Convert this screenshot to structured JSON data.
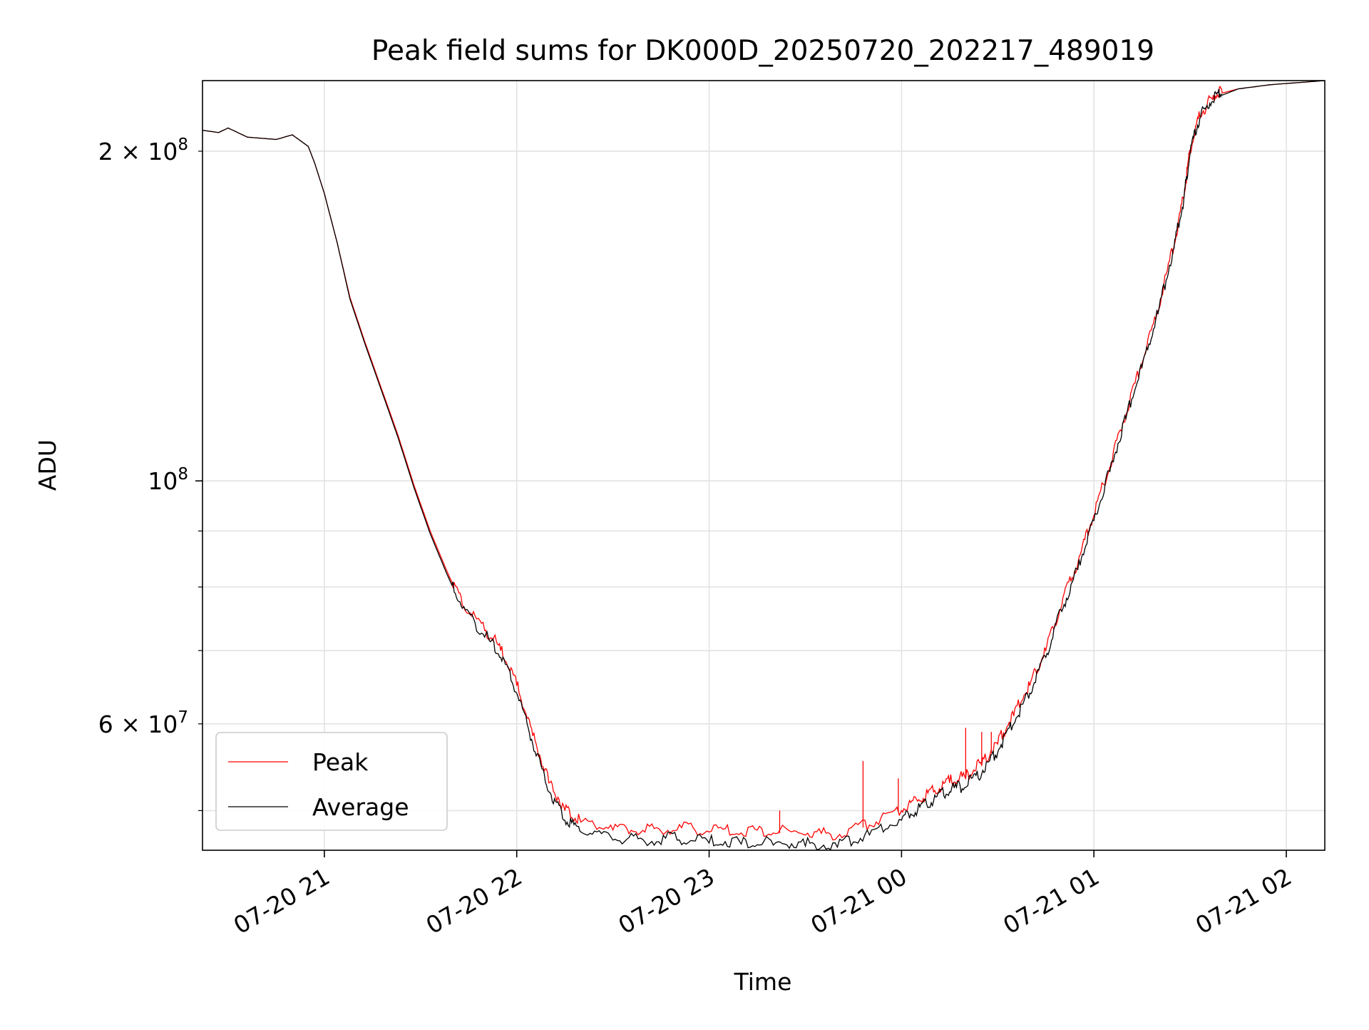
{
  "chart_data": {
    "type": "line",
    "title": "Peak field sums for DK000D_20250720_202217_489019",
    "xlabel": "Time",
    "ylabel": "ADU",
    "xlim": [
      "2025-07-20 20:22",
      "2025-07-21 02:12"
    ],
    "ylim": [
      46000000,
      232000000
    ],
    "yscale": "log",
    "grid": true,
    "legend_position": "lower-left",
    "x_ticks": [
      {
        "value": "2025-07-20 21:00",
        "label": "07-20 21"
      },
      {
        "value": "2025-07-20 22:00",
        "label": "07-20 22"
      },
      {
        "value": "2025-07-20 23:00",
        "label": "07-20 23"
      },
      {
        "value": "2025-07-21 00:00",
        "label": "07-21 00"
      },
      {
        "value": "2025-07-21 01:00",
        "label": "07-21 01"
      },
      {
        "value": "2025-07-21 02:00",
        "label": "07-21 02"
      }
    ],
    "y_major_ticks": [
      {
        "value": 100000000,
        "label": "10",
        "exp": "8"
      }
    ],
    "y_labeled_minor_ticks": [
      {
        "value": 60000000,
        "label": "6 × 10",
        "exp": "7"
      },
      {
        "value": 200000000,
        "label": "2 × 10",
        "exp": "8"
      }
    ],
    "y_minor_ticks": [
      50000000,
      70000000,
      80000000,
      90000000
    ],
    "series": [
      {
        "name": "Peak",
        "color": "#ff0000",
        "x": [
          "2025-07-20 20:22",
          "2025-07-20 20:27",
          "2025-07-20 20:30",
          "2025-07-20 20:36",
          "2025-07-20 20:45",
          "2025-07-20 20:50",
          "2025-07-20 20:55",
          "2025-07-20 20:57",
          "2025-07-20 21:00",
          "2025-07-20 21:04",
          "2025-07-20 21:08",
          "2025-07-20 21:13",
          "2025-07-20 21:18",
          "2025-07-20 21:23",
          "2025-07-20 21:28",
          "2025-07-20 21:33",
          "2025-07-20 21:38",
          "2025-07-20 21:43",
          "2025-07-20 21:50",
          "2025-07-20 21:55",
          "2025-07-20 22:00",
          "2025-07-20 22:05",
          "2025-07-20 22:10",
          "2025-07-20 22:15",
          "2025-07-20 22:20",
          "2025-07-20 22:30",
          "2025-07-20 22:40",
          "2025-07-20 22:50",
          "2025-07-20 23:00",
          "2025-07-20 23:10",
          "2025-07-20 23:20",
          "2025-07-20 23:30",
          "2025-07-20 23:40",
          "2025-07-20 23:50",
          "2025-07-21 00:00",
          "2025-07-21 00:05",
          "2025-07-21 00:10",
          "2025-07-21 00:15",
          "2025-07-21 00:20",
          "2025-07-21 00:25",
          "2025-07-21 00:30",
          "2025-07-21 00:35",
          "2025-07-21 00:40",
          "2025-07-21 00:45",
          "2025-07-21 00:50",
          "2025-07-21 00:55",
          "2025-07-21 01:00",
          "2025-07-21 01:05",
          "2025-07-21 01:10",
          "2025-07-21 01:15",
          "2025-07-21 01:20",
          "2025-07-21 01:25",
          "2025-07-21 01:28",
          "2025-07-21 01:30",
          "2025-07-21 01:33",
          "2025-07-21 01:37",
          "2025-07-21 01:40",
          "2025-07-21 01:45",
          "2025-07-21 01:55",
          "2025-07-21 02:12"
        ],
        "y": [
          209000000,
          208000000,
          210000000,
          206000000,
          205000000,
          207000000,
          202000000,
          195000000,
          183000000,
          165000000,
          147000000,
          133000000,
          121000000,
          110000000,
          99000000,
          90000000,
          83000000,
          77000000,
          73000000,
          70000000,
          65000000,
          58500000,
          53000000,
          50000000,
          48800000,
          48000000,
          47800000,
          48000000,
          47800000,
          47700000,
          47700000,
          47500000,
          47300000,
          48500000,
          50000000,
          51000000,
          52000000,
          53000000,
          53500000,
          55000000,
          57500000,
          61000000,
          65000000,
          70000000,
          77000000,
          84000000,
          93000000,
          103000000,
          115000000,
          128000000,
          143000000,
          164000000,
          181000000,
          200000000,
          215000000,
          223000000,
          226000000,
          228000000,
          230000000,
          232000000
        ]
      },
      {
        "name": "Average",
        "color": "#000000",
        "x": [
          "2025-07-20 20:22",
          "2025-07-20 20:27",
          "2025-07-20 20:30",
          "2025-07-20 20:36",
          "2025-07-20 20:45",
          "2025-07-20 20:50",
          "2025-07-20 20:55",
          "2025-07-20 20:57",
          "2025-07-20 21:00",
          "2025-07-20 21:04",
          "2025-07-20 21:08",
          "2025-07-20 21:13",
          "2025-07-20 21:18",
          "2025-07-20 21:23",
          "2025-07-20 21:28",
          "2025-07-20 21:33",
          "2025-07-20 21:38",
          "2025-07-20 21:43",
          "2025-07-20 21:50",
          "2025-07-20 21:55",
          "2025-07-20 22:00",
          "2025-07-20 22:05",
          "2025-07-20 22:10",
          "2025-07-20 22:15",
          "2025-07-20 22:20",
          "2025-07-20 22:30",
          "2025-07-20 22:40",
          "2025-07-20 22:50",
          "2025-07-20 23:00",
          "2025-07-20 23:10",
          "2025-07-20 23:20",
          "2025-07-20 23:30",
          "2025-07-20 23:40",
          "2025-07-20 23:50",
          "2025-07-21 00:00",
          "2025-07-21 00:05",
          "2025-07-21 00:10",
          "2025-07-21 00:15",
          "2025-07-21 00:20",
          "2025-07-21 00:25",
          "2025-07-21 00:30",
          "2025-07-21 00:35",
          "2025-07-21 00:40",
          "2025-07-21 00:45",
          "2025-07-21 00:50",
          "2025-07-21 00:55",
          "2025-07-21 01:00",
          "2025-07-21 01:05",
          "2025-07-21 01:10",
          "2025-07-21 01:15",
          "2025-07-21 01:20",
          "2025-07-21 01:25",
          "2025-07-21 01:28",
          "2025-07-21 01:30",
          "2025-07-21 01:33",
          "2025-07-21 01:37",
          "2025-07-21 01:40",
          "2025-07-21 01:45",
          "2025-07-21 01:55",
          "2025-07-21 02:12"
        ],
        "y": [
          209000000,
          208000000,
          210000000,
          206000000,
          205000000,
          207000000,
          202000000,
          195000000,
          183000000,
          165000000,
          146500000,
          132500000,
          120500000,
          109500000,
          98500000,
          89500000,
          82500000,
          76500000,
          72000000,
          69000000,
          64000000,
          57500000,
          52000000,
          49000000,
          47800000,
          47000000,
          46800000,
          47000000,
          46700000,
          46600000,
          46500000,
          46400000,
          46300000,
          47500000,
          49000000,
          50000000,
          51000000,
          52000000,
          52500000,
          54000000,
          56500000,
          60000000,
          64000000,
          69000000,
          76000000,
          83000000,
          92000000,
          102000000,
          114000000,
          127000000,
          142000000,
          163000000,
          180000000,
          199000000,
          214000000,
          222000000,
          225000000,
          228000000,
          230000000,
          232000000
        ]
      }
    ],
    "spikes": [
      {
        "series": "Peak",
        "x": "2025-07-20 23:22",
        "y": 50000000
      },
      {
        "series": "Peak",
        "x": "2025-07-20 23:48",
        "y": 55500000
      },
      {
        "series": "Peak",
        "x": "2025-07-20 23:59",
        "y": 53500000
      },
      {
        "series": "Peak",
        "x": "2025-07-21 00:20",
        "y": 59500000
      },
      {
        "series": "Peak",
        "x": "2025-07-21 00:25",
        "y": 59000000
      },
      {
        "series": "Peak",
        "x": "2025-07-21 00:28",
        "y": 59000000
      }
    ]
  }
}
